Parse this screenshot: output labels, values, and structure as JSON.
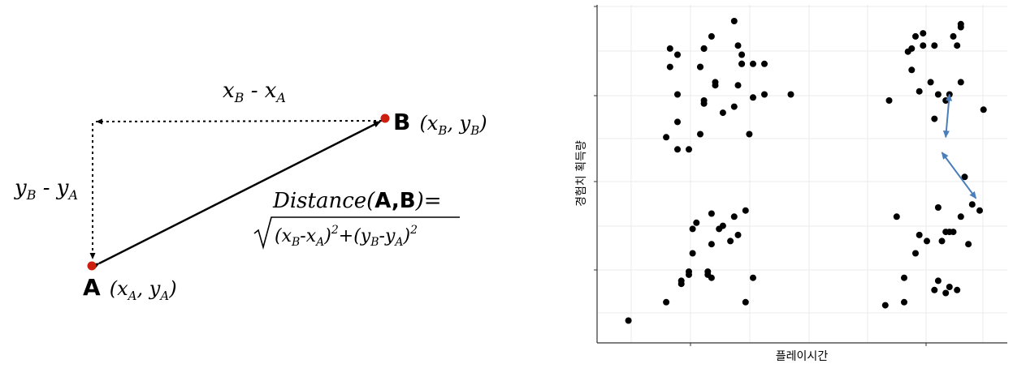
{
  "diagram": {
    "point_a": {
      "letter": "A",
      "coord": "(x",
      "sub1": "A",
      "mid": ", y",
      "sub2": "A",
      "close": ")"
    },
    "point_b": {
      "letter": "B",
      "coord": "(x",
      "sub1": "B",
      "mid": ", y",
      "sub2": "B",
      "close": ")"
    },
    "dx_label": {
      "a": "x",
      "sa": "B",
      "mid": " - x",
      "sb": "A"
    },
    "dy_label": {
      "a": "y",
      "sa": "B",
      "mid": " - y",
      "sb": "A"
    },
    "formula": {
      "prefix": "Distance(",
      "bold": "A,B",
      "suffix": ")=",
      "root_text": "(x",
      "p1": "B",
      "p2": "-x",
      "p3": "A",
      "p4": ")",
      "e1": "2",
      "p5": "+(y",
      "p6": "B",
      "p7": "-y",
      "p8": "A",
      "p9": ")",
      "e2": "2"
    },
    "colors": {
      "point": "#cc1f0f",
      "line": "#000000"
    }
  },
  "chart_data": {
    "type": "scatter",
    "xlabel": "플레이시간",
    "ylabel": "경험치 획득량",
    "xlim": [
      0,
      100
    ],
    "ylim": [
      0,
      100
    ],
    "grid": true,
    "point_color": "#000000",
    "arrow_color": "#4a7ebb",
    "points": [
      [
        4,
        2
      ],
      [
        14,
        8
      ],
      [
        14,
        62
      ],
      [
        15,
        85
      ],
      [
        15,
        91
      ],
      [
        17,
        89
      ],
      [
        17,
        67
      ],
      [
        17,
        76
      ],
      [
        17,
        58
      ],
      [
        18,
        14
      ],
      [
        18,
        15
      ],
      [
        20,
        17
      ],
      [
        20,
        18
      ],
      [
        20,
        58
      ],
      [
        21,
        24
      ],
      [
        21,
        32
      ],
      [
        22,
        34
      ],
      [
        23,
        85
      ],
      [
        23,
        85
      ],
      [
        23,
        63
      ],
      [
        24,
        91
      ],
      [
        24,
        91
      ],
      [
        24,
        73
      ],
      [
        24,
        74
      ],
      [
        25,
        17
      ],
      [
        25,
        18
      ],
      [
        26,
        16
      ],
      [
        26,
        95
      ],
      [
        26,
        37
      ],
      [
        26,
        27
      ],
      [
        27,
        80
      ],
      [
        27,
        79
      ],
      [
        28,
        32
      ],
      [
        29,
        70
      ],
      [
        29,
        33
      ],
      [
        31,
        28
      ],
      [
        32,
        100
      ],
      [
        32,
        36
      ],
      [
        32,
        72
      ],
      [
        33,
        30
      ],
      [
        33,
        92
      ],
      [
        33,
        79
      ],
      [
        34,
        89
      ],
      [
        34,
        86
      ],
      [
        34,
        86
      ],
      [
        35,
        38
      ],
      [
        35,
        8
      ],
      [
        36,
        63
      ],
      [
        37,
        75
      ],
      [
        37,
        86
      ],
      [
        37,
        16
      ],
      [
        40,
        86
      ],
      [
        40,
        76
      ],
      [
        47,
        76
      ],
      [
        72,
        7
      ],
      [
        73,
        74
      ],
      [
        75,
        36
      ],
      [
        77,
        8
      ],
      [
        77,
        16
      ],
      [
        78,
        90
      ],
      [
        79,
        91
      ],
      [
        79,
        84
      ],
      [
        80,
        95
      ],
      [
        80,
        24
      ],
      [
        81,
        30
      ],
      [
        81,
        77
      ],
      [
        82,
        92
      ],
      [
        82,
        96
      ],
      [
        83,
        28
      ],
      [
        84,
        80
      ],
      [
        85,
        92
      ],
      [
        85,
        68
      ],
      [
        85,
        12
      ],
      [
        86,
        15
      ],
      [
        86,
        76
      ],
      [
        86,
        39
      ],
      [
        87,
        28
      ],
      [
        88,
        31
      ],
      [
        88,
        11
      ],
      [
        88,
        74
      ],
      [
        89,
        31
      ],
      [
        89,
        13
      ],
      [
        89,
        76
      ],
      [
        90,
        95
      ],
      [
        90,
        31
      ],
      [
        91,
        92
      ],
      [
        91,
        12
      ],
      [
        92,
        36
      ],
      [
        92,
        99
      ],
      [
        92,
        98
      ],
      [
        92,
        80
      ],
      [
        93,
        49
      ],
      [
        94,
        27
      ],
      [
        95,
        40
      ],
      [
        97,
        38
      ],
      [
        98,
        71
      ]
    ],
    "arrows": [
      {
        "from": [
          88,
          62
        ],
        "to": [
          89,
          76
        ]
      },
      {
        "from": [
          87,
          57
        ],
        "to": [
          96,
          42
        ]
      }
    ]
  }
}
